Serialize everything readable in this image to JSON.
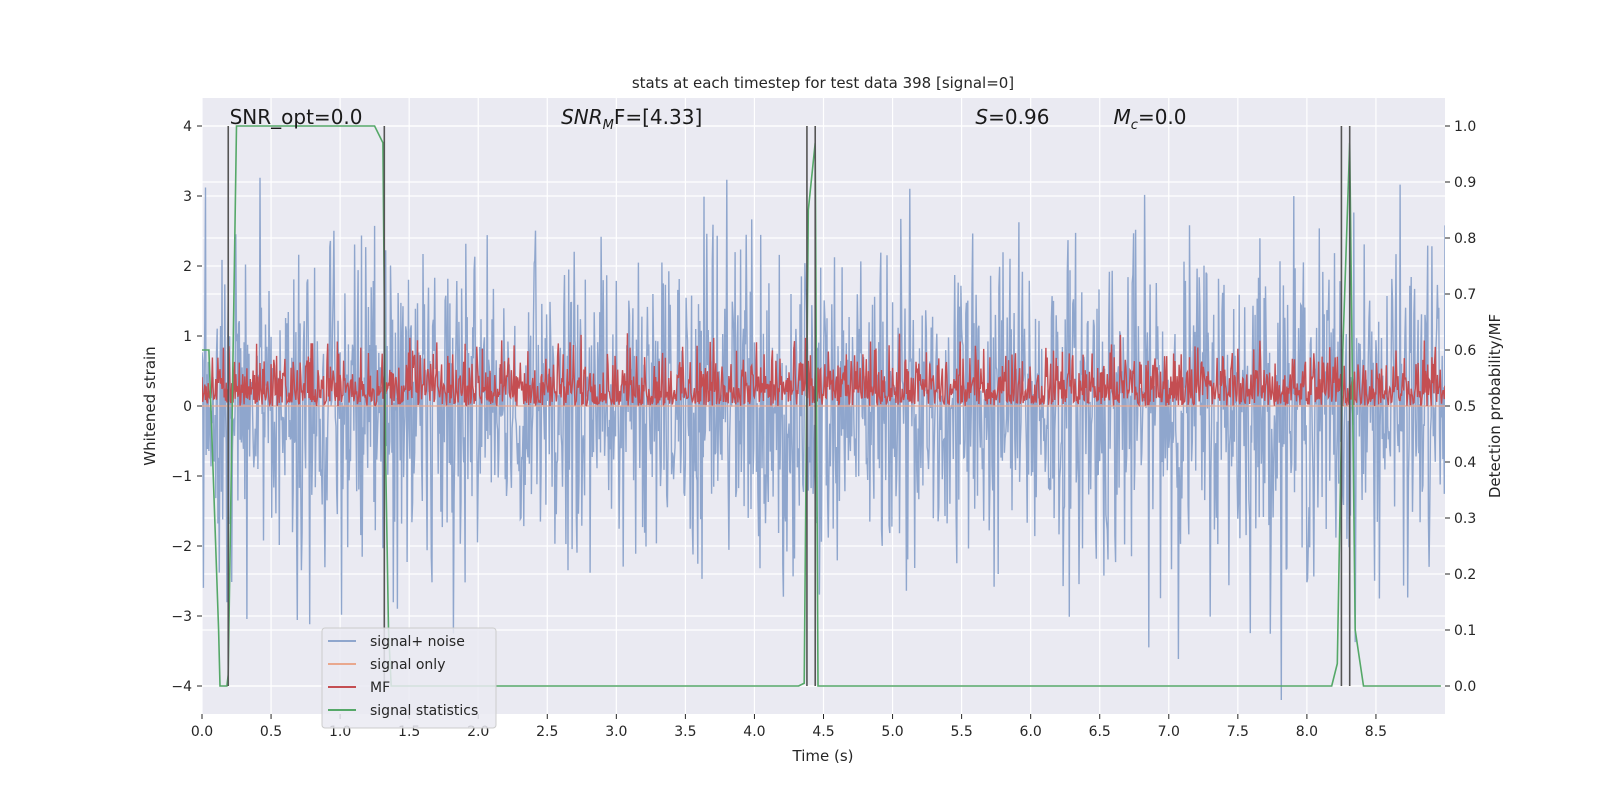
{
  "chart_data": {
    "type": "line",
    "title": "stats at each timestep for test data 398 [signal=0]",
    "xlabel": "Time (s)",
    "ylabel_left": "Whitened strain",
    "ylabel_right": "Detection probability/MF",
    "xlim": [
      0.0,
      9.0
    ],
    "ylim_left": [
      -4.4,
      4.4
    ],
    "ylim_right": [
      -0.05,
      1.05
    ],
    "x_ticks": [
      "0.0",
      "0.5",
      "1.0",
      "1.5",
      "2.0",
      "2.5",
      "3.0",
      "3.5",
      "4.0",
      "4.5",
      "5.0",
      "5.5",
      "6.0",
      "6.5",
      "7.0",
      "7.5",
      "8.0",
      "8.5"
    ],
    "y_ticks_left": [
      "4",
      "3",
      "2",
      "1",
      "0",
      "−1",
      "−2",
      "−3",
      "−4"
    ],
    "y_ticks_right": [
      "1.0",
      "0.9",
      "0.8",
      "0.7",
      "0.6",
      "0.5",
      "0.4",
      "0.3",
      "0.2",
      "0.1",
      "0.0"
    ],
    "grid": true,
    "legend_position": "lower-left",
    "annotations": [
      {
        "text": "SNR_opt=0.0",
        "x": 0.2
      },
      {
        "text": "SNR_MF=[4.33]",
        "x": 2.6,
        "main": "SNR",
        "sub": "M",
        "tail": "F=[4.33]"
      },
      {
        "text": "S=0.96",
        "x": 5.6,
        "main": "S",
        "tail": "=0.96"
      },
      {
        "text": "M_c=0.0",
        "x": 6.6,
        "main": "M",
        "sub": "c",
        "tail": "=0.0"
      }
    ],
    "series": [
      {
        "name": "signal+ noise",
        "color": "#8fa6cd",
        "axis": "left",
        "kind": "noise",
        "sigma": 1.0
      },
      {
        "name": "signal only",
        "color": "#e9a88e",
        "axis": "left",
        "kind": "zero"
      },
      {
        "name": "MF",
        "color": "#c44e52",
        "axis": "right",
        "kind": "mf",
        "base": 0.55
      },
      {
        "name": "signal statistics",
        "color": "#55a868",
        "axis": "right",
        "kind": "stat",
        "x": [
          0.0,
          0.05,
          0.12,
          0.13,
          0.18,
          0.19,
          0.25,
          1.25,
          1.31,
          1.33,
          1.35,
          1.37,
          1.4,
          1.45,
          2.0,
          3.0,
          4.0,
          4.32,
          4.36,
          4.39,
          4.44,
          4.46,
          5.0,
          6.0,
          7.0,
          8.0,
          8.18,
          8.22,
          8.26,
          8.31,
          8.35,
          8.41,
          8.97
        ],
        "y": [
          0.6,
          0.6,
          0.1,
          0.0,
          0.0,
          0.02,
          1.0,
          1.0,
          0.97,
          0.4,
          0.1,
          0.0,
          0.0,
          0.0,
          0.0,
          0.0,
          0.0,
          0.0,
          0.005,
          0.85,
          0.97,
          0.0,
          0.0,
          0.0,
          0.0,
          0.0,
          0.0,
          0.04,
          0.6,
          0.97,
          0.1,
          0.0,
          0.0
        ]
      }
    ],
    "vertical_lines": [
      0.19,
      1.32,
      4.38,
      4.44,
      8.25,
      8.31
    ],
    "vertical_line_color": "#555555"
  }
}
